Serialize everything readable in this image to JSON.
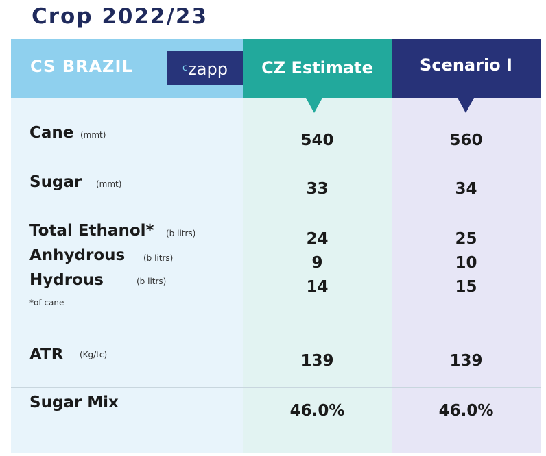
{
  "title": "Crop 2022/23",
  "header": {
    "region": "CS BRAZIL",
    "logo_mark": "c",
    "logo_text": "zapp",
    "estimate_label": "CZ Estimate",
    "scenario_label": "Scenario I"
  },
  "colors": {
    "title": "#1f2a5c",
    "header_label_bg": "#8fd0ee",
    "header_estimate_bg": "#22a99c",
    "header_scenario_bg": "#273278",
    "logo_bg": "#27347a"
  },
  "rows": {
    "cane": {
      "label": "Cane",
      "unit": "(mmt)",
      "estimate": "540",
      "scenario": "560"
    },
    "sugar": {
      "label": "Sugar",
      "unit": "(mmt)",
      "estimate": "33",
      "scenario": "34"
    },
    "total_ethanol": {
      "label": "Total Ethanol*",
      "unit": "(b litrs)",
      "estimate": "24",
      "scenario": "25"
    },
    "anhydrous": {
      "label": "Anhydrous",
      "unit": "(b litrs)",
      "estimate": "9",
      "scenario": "10"
    },
    "hydrous": {
      "label": "Hydrous",
      "unit": "(b litrs)",
      "estimate": "14",
      "scenario": "15"
    },
    "ethanol_note": "*of cane",
    "atr": {
      "label": "ATR",
      "unit": "(Kg/tc)",
      "estimate": "139",
      "scenario": "139"
    },
    "sugar_mix": {
      "label": "Sugar Mix",
      "estimate": "46.0%",
      "scenario": "46.0%"
    }
  },
  "chart_data": {
    "type": "table",
    "title": "Crop 2022/23",
    "region": "CS BRAZIL",
    "columns": [
      "CZ Estimate",
      "Scenario I"
    ],
    "rows": [
      {
        "metric": "Cane",
        "unit": "(mmt)",
        "values": [
          "540",
          "560"
        ]
      },
      {
        "metric": "Sugar",
        "unit": "(mmt)",
        "values": [
          "33",
          "34"
        ]
      },
      {
        "metric": "Total Ethanol*",
        "unit": "(b litrs)",
        "values": [
          "24",
          "25"
        ]
      },
      {
        "metric": "Anhydrous",
        "unit": "(b litrs)",
        "values": [
          "9",
          "10"
        ]
      },
      {
        "metric": "Hydrous",
        "unit": "(b litrs)",
        "values": [
          "14",
          "15"
        ]
      },
      {
        "metric": "ATR",
        "unit": "(Kg/tc)",
        "values": [
          "139",
          "139"
        ]
      },
      {
        "metric": "Sugar Mix",
        "unit": "",
        "values": [
          "46.0%",
          "46.0%"
        ]
      }
    ],
    "footnote": "*of cane"
  }
}
